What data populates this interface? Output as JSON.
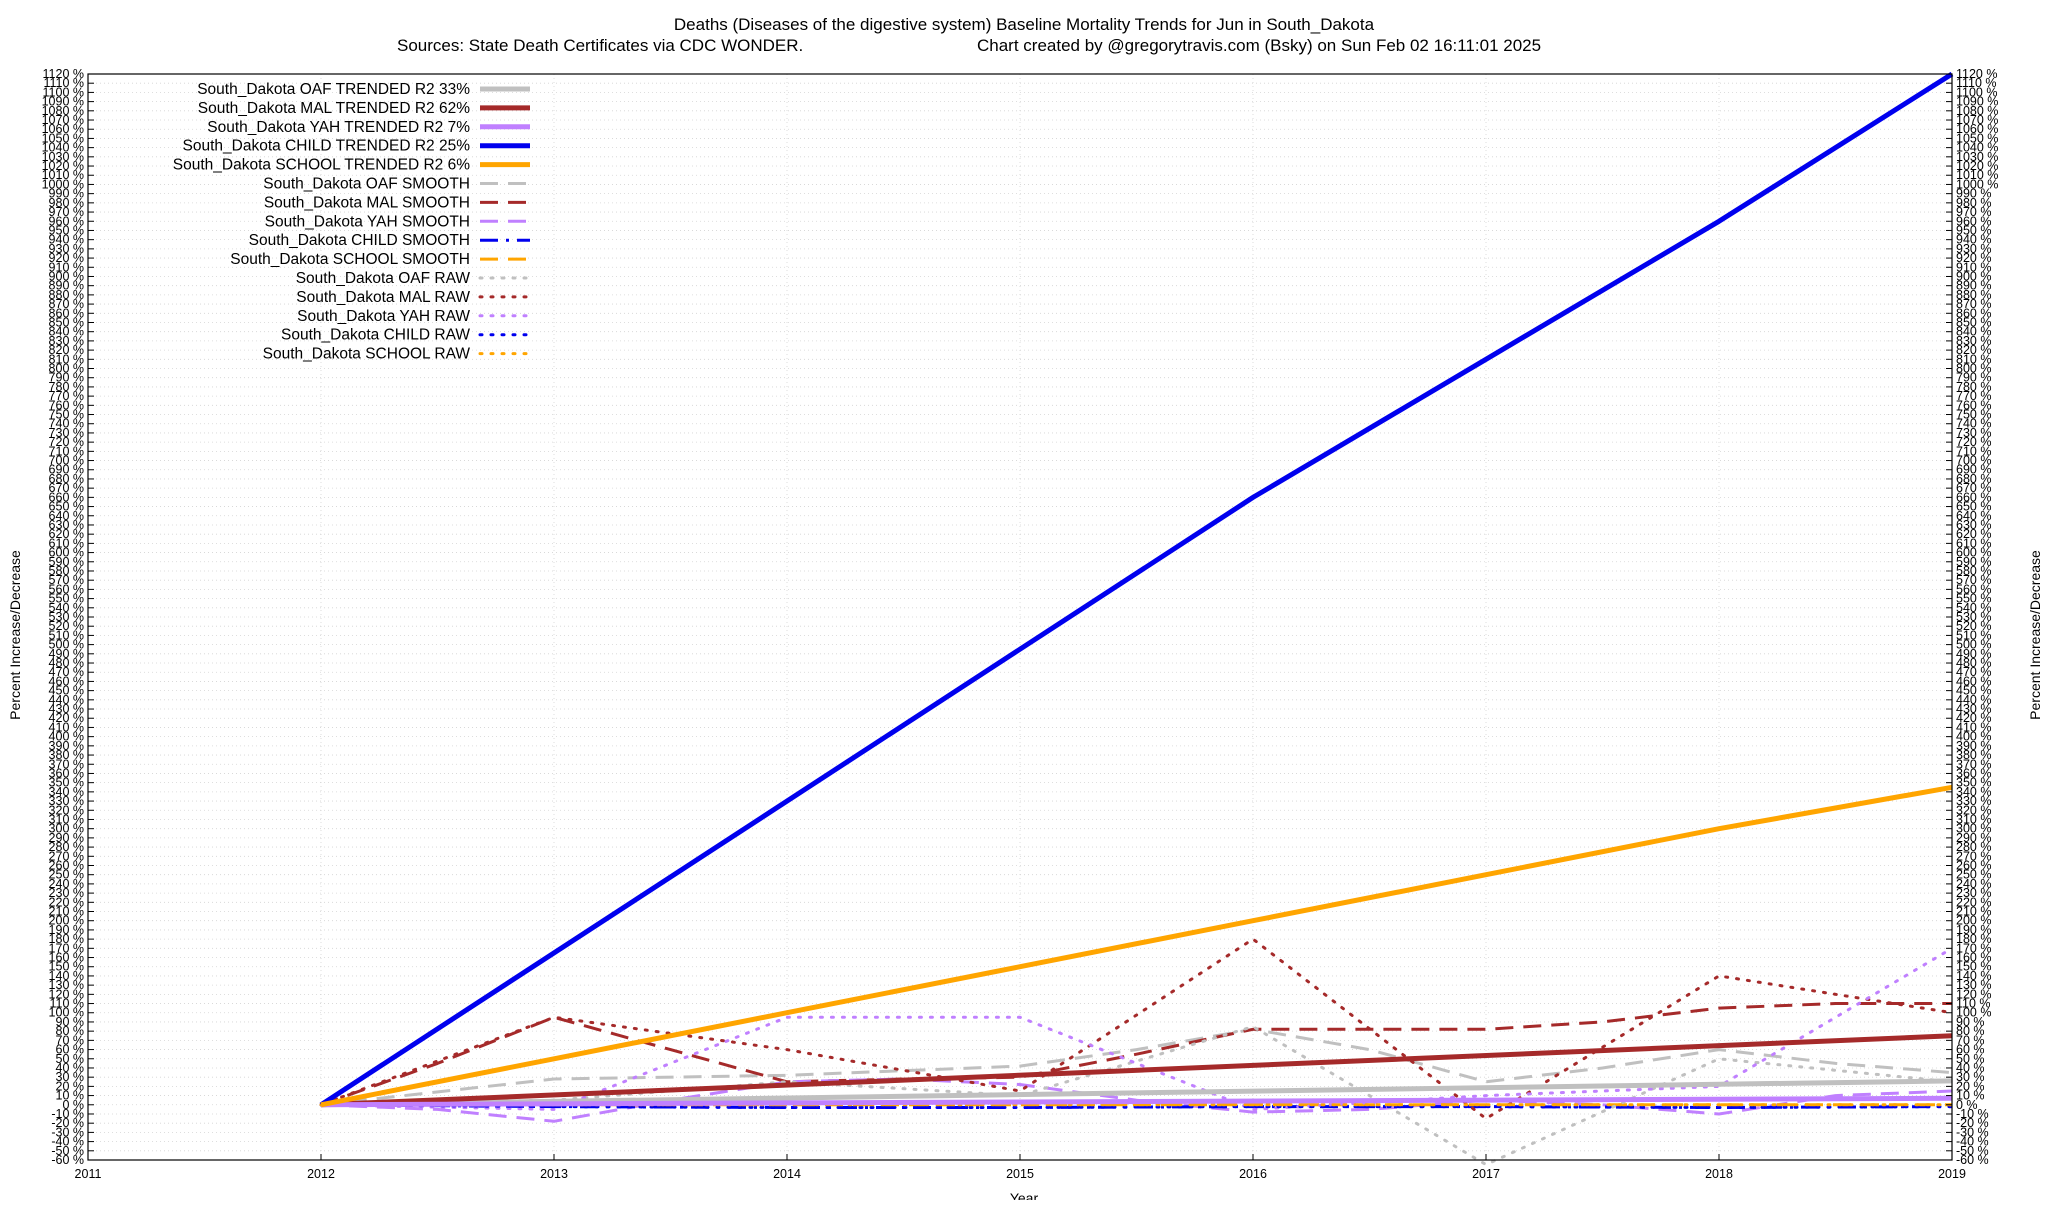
{
  "chart_data": {
    "type": "line",
    "title": "Deaths (Diseases of the digestive system)  Baseline Mortality Trends for Jun in South_Dakota",
    "subtitle_left": "Sources: State Death Certificates via CDC WONDER.",
    "subtitle_right": "Chart created by @gregorytravis.com (Bsky) on Sun Feb 02 16:11:01 2025",
    "xlabel": "Year",
    "ylabel": "Percent Increase/Decrease",
    "xlim": [
      2011,
      2019
    ],
    "ylim": [
      -60,
      1120
    ],
    "y_tick_step": 10,
    "y_tick_suffix": " %",
    "x_ticks": [
      2011,
      2012,
      2013,
      2014,
      2015,
      2016,
      2017,
      2018,
      2019
    ],
    "grid": true,
    "legend_position": "top-left",
    "series": [
      {
        "name": "South_Dakota OAF TRENDED R2",
        "r2": "33%",
        "style": "solid",
        "width": 5,
        "color": "#c0c0c0",
        "x": [
          2012,
          2019
        ],
        "y": [
          0,
          26
        ]
      },
      {
        "name": "South_Dakota MAL TRENDED R2",
        "r2": "62%",
        "style": "solid",
        "width": 5,
        "color": "#a52a2a",
        "x": [
          2012,
          2019
        ],
        "y": [
          0,
          75
        ]
      },
      {
        "name": "South_Dakota YAH TRENDED R2",
        "r2": "7%",
        "style": "solid",
        "width": 5,
        "color": "#c080ff",
        "x": [
          2012,
          2019
        ],
        "y": [
          0,
          7
        ]
      },
      {
        "name": "South_Dakota CHILD TRENDED R2",
        "r2": "25%",
        "style": "solid",
        "width": 5,
        "color": "#0000ee",
        "x": [
          2012,
          2015,
          2016,
          2017,
          2018,
          2019
        ],
        "y": [
          0,
          495,
          660,
          810,
          960,
          1120
        ]
      },
      {
        "name": "South_Dakota SCHOOL TRENDED R2",
        "r2": "6%",
        "style": "solid",
        "width": 5,
        "color": "#ffa500",
        "x": [
          2012,
          2013,
          2014,
          2015,
          2016,
          2017,
          2018,
          2019
        ],
        "y": [
          0,
          50,
          100,
          150,
          200,
          250,
          300,
          345
        ]
      },
      {
        "name": "South_Dakota OAF SMOOTH",
        "r2": "",
        "style": "dashed",
        "width": 3,
        "color": "#c0c0c0",
        "x": [
          2012,
          2013,
          2014,
          2015,
          2015.5,
          2016,
          2016.5,
          2017,
          2017.5,
          2018,
          2018.5,
          2019
        ],
        "y": [
          0,
          28,
          32,
          42,
          60,
          82,
          60,
          25,
          40,
          60,
          45,
          35
        ]
      },
      {
        "name": "South_Dakota MAL SMOOTH",
        "r2": "",
        "style": "dashed",
        "width": 3,
        "color": "#a52a2a",
        "x": [
          2012,
          2012.5,
          2013,
          2013.5,
          2014,
          2014.5,
          2015,
          2015.5,
          2016,
          2017,
          2017.5,
          2018,
          2018.5,
          2019
        ],
        "y": [
          0,
          45,
          95,
          60,
          25,
          28,
          30,
          55,
          82,
          82,
          90,
          105,
          110,
          110
        ]
      },
      {
        "name": "South_Dakota YAH SMOOTH",
        "r2": "",
        "style": "dashed",
        "width": 3,
        "color": "#c080ff",
        "x": [
          2012,
          2012.5,
          2013,
          2013.5,
          2014,
          2014.5,
          2015,
          2015.5,
          2016,
          2016.5,
          2017,
          2017.5,
          2018,
          2018.5,
          2019
        ],
        "y": [
          0,
          -5,
          -18,
          5,
          25,
          28,
          22,
          5,
          -8,
          -5,
          5,
          0,
          -10,
          10,
          15
        ]
      },
      {
        "name": "South_Dakota CHILD SMOOTH",
        "r2": "",
        "style": "dashdot",
        "width": 3,
        "color": "#0000ee",
        "x": [
          2012,
          2013,
          2014,
          2015,
          2016,
          2017,
          2018,
          2019
        ],
        "y": [
          0,
          -2,
          -3,
          -3,
          -2,
          -2,
          -3,
          -2
        ]
      },
      {
        "name": "South_Dakota SCHOOL SMOOTH",
        "r2": "",
        "style": "dashed",
        "width": 3,
        "color": "#ffa500",
        "x": [
          2012,
          2019
        ],
        "y": [
          0,
          0
        ]
      },
      {
        "name": "South_Dakota OAF RAW",
        "r2": "",
        "style": "dotted",
        "width": 3,
        "color": "#c0c0c0",
        "x": [
          2012,
          2013,
          2014,
          2015,
          2016,
          2017,
          2018,
          2019
        ],
        "y": [
          0,
          5,
          25,
          10,
          85,
          -65,
          50,
          25
        ]
      },
      {
        "name": "South_Dakota MAL RAW",
        "r2": "",
        "style": "dotted",
        "width": 3,
        "color": "#a52a2a",
        "x": [
          2012,
          2013,
          2014,
          2015,
          2016,
          2017,
          2018,
          2019
        ],
        "y": [
          0,
          95,
          60,
          15,
          180,
          -15,
          140,
          100
        ]
      },
      {
        "name": "South_Dakota YAH RAW",
        "r2": "",
        "style": "dotted",
        "width": 3,
        "color": "#c080ff",
        "x": [
          2012,
          2013,
          2014,
          2015,
          2016,
          2017,
          2018,
          2019
        ],
        "y": [
          0,
          -5,
          95,
          95,
          -5,
          10,
          20,
          170
        ]
      },
      {
        "name": "South_Dakota CHILD RAW",
        "r2": "",
        "style": "dotted",
        "width": 3,
        "color": "#0000ee",
        "x": [
          2012,
          2013,
          2014,
          2015,
          2016,
          2017,
          2018,
          2019
        ],
        "y": [
          0,
          -2,
          -3,
          -3,
          -2,
          -2,
          -3,
          -2
        ]
      },
      {
        "name": "South_Dakota SCHOOL RAW",
        "r2": "",
        "style": "dotted",
        "width": 3,
        "color": "#ffa500",
        "x": [
          2012,
          2019
        ],
        "y": [
          0,
          0
        ]
      }
    ]
  }
}
